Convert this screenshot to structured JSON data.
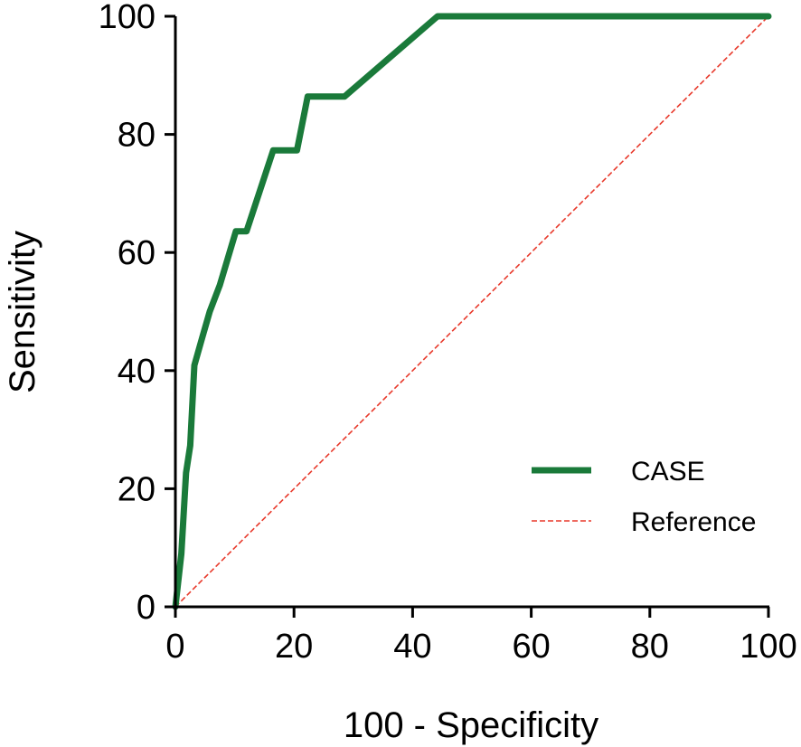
{
  "chart_data": {
    "type": "line",
    "title": "",
    "xlabel": "100 - Specificity",
    "ylabel": "Sensitivity",
    "xlim": [
      0,
      100
    ],
    "ylim": [
      0,
      100
    ],
    "xticks": [
      0,
      20,
      40,
      60,
      80,
      100
    ],
    "yticks": [
      0,
      20,
      40,
      60,
      80,
      100
    ],
    "grid": false,
    "legend": {
      "placement": "bottom-right"
    },
    "series": [
      {
        "name": "CASE",
        "color": "#1a7a3a",
        "style": "solid",
        "x": [
          0,
          1.0,
          1.8,
          2.5,
          3.2,
          4.5,
          5.8,
          7.5,
          10.2,
          12.0,
          16.5,
          20.5,
          22.3,
          28.5,
          44.2,
          100
        ],
        "y": [
          0,
          9,
          22.7,
          27.3,
          40.9,
          45.5,
          50,
          54.5,
          63.6,
          63.6,
          77.3,
          77.3,
          86.4,
          86.4,
          100,
          100
        ]
      },
      {
        "name": "Reference",
        "color": "#e8392b",
        "style": "dashed",
        "x": [
          0,
          100
        ],
        "y": [
          0,
          100
        ]
      }
    ]
  }
}
